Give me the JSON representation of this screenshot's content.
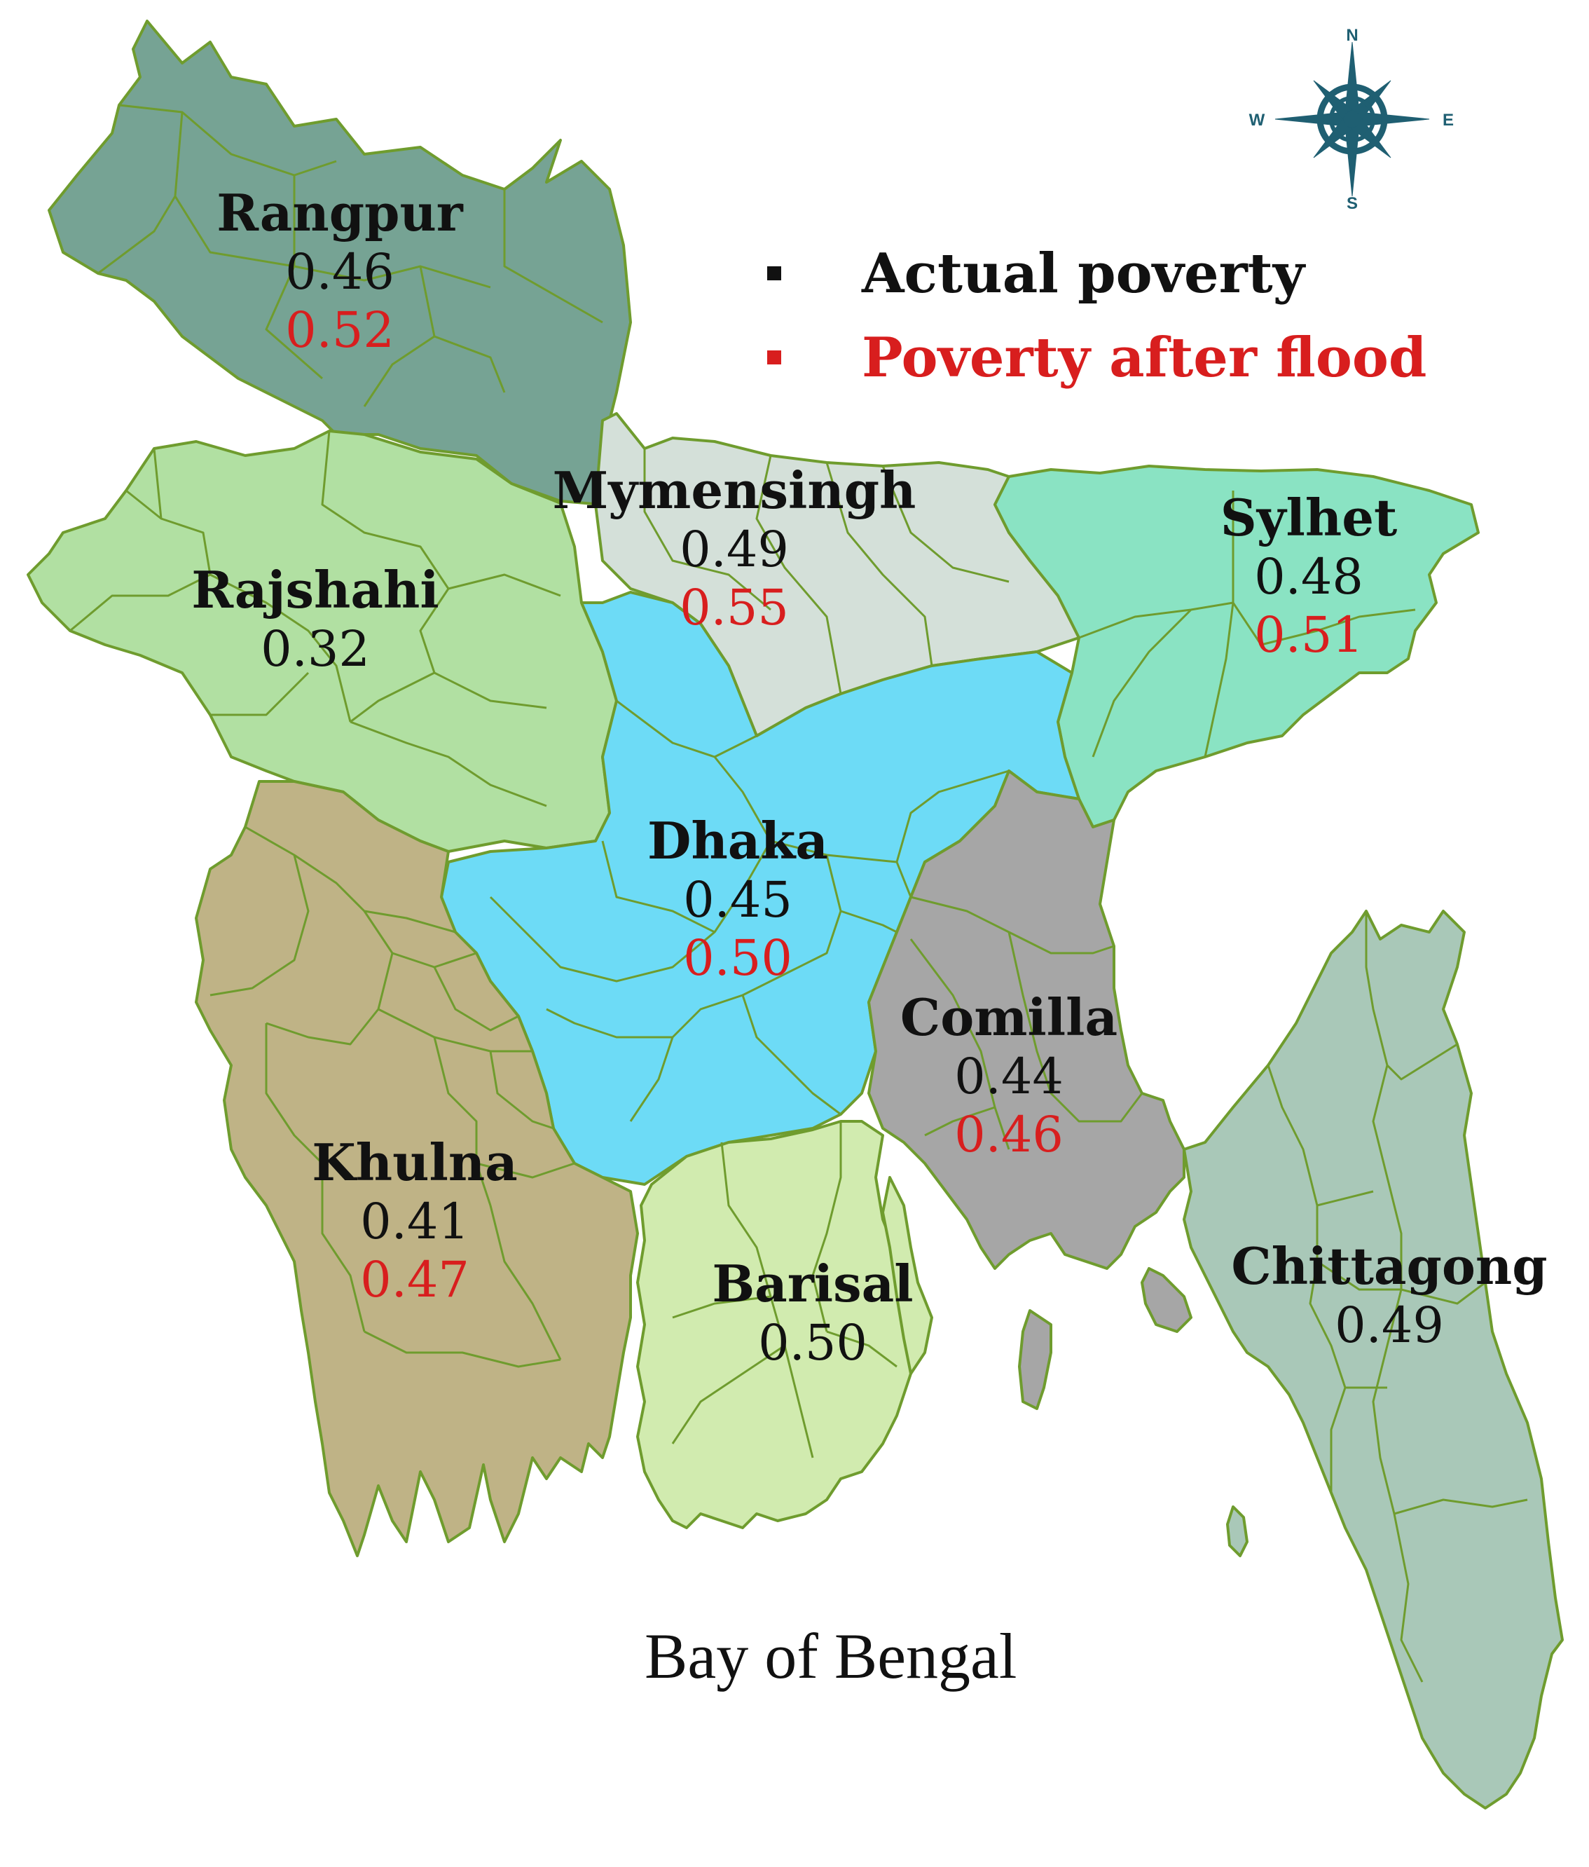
{
  "colors": {
    "border": "#6f9c2e",
    "actual": "#111111",
    "after": "#d81e1e",
    "rangpur": "#76a394",
    "rajshahi": "#b1e0a2",
    "mymensingh": "#d4e0d9",
    "sylhet": "#8ae3c3",
    "dhaka": "#6ddbf6",
    "khulna": "#bfb386",
    "comilla": "#a6a6a6",
    "barisal": "#d1ebaf",
    "chittagong": "#a9c8b8"
  },
  "legend": {
    "actual_label": "Actual poverty",
    "after_label": "Poverty after flood"
  },
  "compass": {
    "n": "N",
    "s": "S",
    "e": "E",
    "w": "W",
    "icon": "compass-rose-icon"
  },
  "sea_label": "Bay of Bengal",
  "divisions": {
    "rangpur": {
      "name": "Rangpur",
      "actual": "0.46",
      "after": "0.52"
    },
    "rajshahi": {
      "name": "Rajshahi",
      "actual": "0.32",
      "after": ""
    },
    "mymensingh": {
      "name": "Mymensingh",
      "actual": "0.49",
      "after": "0.55"
    },
    "sylhet": {
      "name": "Sylhet",
      "actual": "0.48",
      "after": "0.51"
    },
    "dhaka": {
      "name": "Dhaka",
      "actual": "0.45",
      "after": "0.50"
    },
    "comilla": {
      "name": "Comilla",
      "actual": "0.44",
      "after": "0.46"
    },
    "khulna": {
      "name": "Khulna",
      "actual": "0.41",
      "after": "0.47"
    },
    "barisal": {
      "name": "Barisal",
      "actual": "0.50",
      "after": ""
    },
    "chittagong": {
      "name": "Chittagong",
      "actual": "0.49",
      "after": ""
    }
  }
}
